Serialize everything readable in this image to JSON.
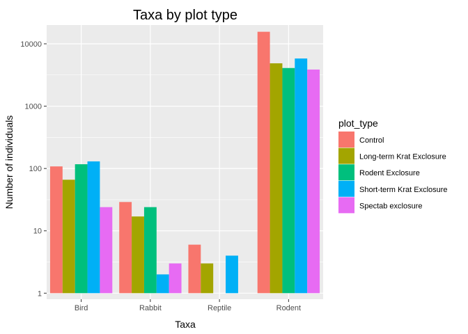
{
  "chart_data": {
    "type": "bar",
    "title": "Taxa by plot type",
    "xlabel": "Taxa",
    "ylabel": "Number of individuals",
    "y_scale": "log10",
    "ylim": [
      0.8,
      20000
    ],
    "y_ticks": [
      1,
      10,
      100,
      1000,
      10000
    ],
    "y_tick_labels": [
      "1",
      "10",
      "100",
      "1000",
      "10000"
    ],
    "grid": true,
    "legend_position": "right",
    "legend_title": "plot_type",
    "categories": [
      "Bird",
      "Rabbit",
      "Reptile",
      "Rodent"
    ],
    "series": [
      {
        "name": "Control",
        "color": "#F8766D",
        "values": [
          108,
          29,
          6,
          15611
        ]
      },
      {
        "name": "Long-term Krat Exclosure",
        "color": "#A3A500",
        "values": [
          66,
          17,
          3,
          4868
        ]
      },
      {
        "name": "Rodent Exclosure",
        "color": "#00BF7D",
        "values": [
          117,
          24,
          null,
          4090
        ]
      },
      {
        "name": "Short-term Krat Exclosure",
        "color": "#00B0F6",
        "values": [
          130,
          2,
          4,
          5814
        ]
      },
      {
        "name": "Spectab exclosure",
        "color": "#E76BF3",
        "values": [
          24,
          3,
          null,
          3866
        ]
      }
    ]
  },
  "colors": {
    "panel_background": "#EBEBEB",
    "grid_major": "#FFFFFF",
    "tick_text": "#4D4D4D"
  }
}
